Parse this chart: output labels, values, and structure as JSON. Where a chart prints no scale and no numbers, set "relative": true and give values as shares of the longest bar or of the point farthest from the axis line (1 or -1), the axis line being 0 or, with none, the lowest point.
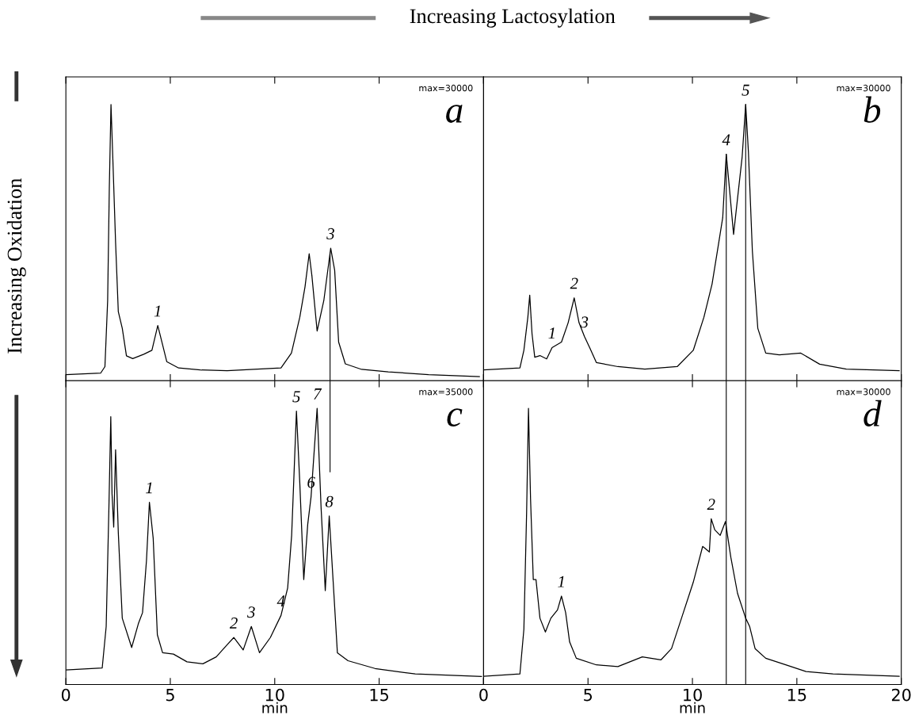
{
  "chart_data": [
    {
      "type": "line",
      "relative": true,
      "xlim": [
        0,
        20
      ],
      "xticks": [
        0,
        5,
        10,
        15,
        20
      ],
      "tick_labels": false,
      "grid": false,
      "legend": false,
      "marker": "none",
      "line_style": "solid",
      "annotations": [
        "a",
        "max=30000",
        "Increasing Lactosylation",
        "Increasing Oxidation",
        {
          "text": "1",
          "x": 4.4,
          "y": 0.2
        },
        {
          "text": "3",
          "x": 12.68,
          "y": 0.48
        }
      ],
      "ref_lines": [
        {
          "axis": "x",
          "value": 12.65,
          "color": "#000000"
        }
      ],
      "series": [
        {
          "color": "#000000",
          "x": [
            0,
            1.67,
            1.87,
            2.0,
            2.08,
            2.16,
            2.25,
            2.38,
            2.51,
            2.7,
            2.9,
            3.2,
            3.73,
            4.12,
            4.4,
            4.63,
            4.83,
            5.4,
            6.43,
            7.72,
            9.0,
            10.3,
            10.8,
            11.2,
            11.45,
            11.65,
            11.78,
            12.03,
            12.35,
            12.68,
            12.87,
            13.06,
            13.38,
            14.16,
            15.44,
            17.37,
            19.8
          ],
          "values": [
            0.022,
            0.028,
            0.051,
            0.29,
            0.7,
            1.0,
            0.8,
            0.5,
            0.25,
            0.19,
            0.09,
            0.08,
            0.096,
            0.11,
            0.2,
            0.13,
            0.069,
            0.046,
            0.039,
            0.036,
            0.041,
            0.046,
            0.1,
            0.23,
            0.34,
            0.46,
            0.38,
            0.18,
            0.29,
            0.48,
            0.4,
            0.14,
            0.061,
            0.041,
            0.032,
            0.022,
            0.015
          ]
        }
      ]
    },
    {
      "type": "line",
      "relative": true,
      "xlim": [
        0,
        20
      ],
      "xticks": [
        0,
        5,
        10,
        15,
        20
      ],
      "tick_labels": false,
      "grid": false,
      "legend": false,
      "marker": "none",
      "line_style": "solid",
      "annotations": [
        "b",
        "max=30000",
        {
          "text": "1",
          "x": 3.28,
          "y": 0.12
        },
        {
          "text": "2",
          "x": 4.34,
          "y": 0.3
        },
        {
          "text": "3",
          "x": 4.83,
          "y": 0.16
        },
        {
          "text": "4",
          "x": 11.62,
          "y": 0.82
        },
        {
          "text": "5",
          "x": 12.55,
          "y": 1.0
        }
      ],
      "ref_lines": [
        {
          "axis": "x",
          "value": 11.62,
          "color": "#000000"
        },
        {
          "axis": "x",
          "value": 12.55,
          "color": "#000000"
        }
      ],
      "series": [
        {
          "color": "#000000",
          "x": [
            0,
            1.74,
            1.93,
            2.12,
            2.21,
            2.32,
            2.45,
            2.7,
            3.02,
            3.28,
            3.73,
            4.05,
            4.34,
            4.57,
            4.83,
            5.08,
            5.4,
            6.43,
            7.72,
            9.27,
            10.04,
            10.55,
            10.94,
            11.26,
            11.45,
            11.62,
            11.78,
            11.97,
            12.16,
            12.38,
            12.55,
            12.68,
            12.87,
            13.13,
            13.51,
            14.16,
            15.19,
            16.09,
            17.37,
            19.9
          ],
          "values": [
            0.039,
            0.046,
            0.11,
            0.23,
            0.31,
            0.17,
            0.085,
            0.091,
            0.079,
            0.12,
            0.14,
            0.21,
            0.3,
            0.21,
            0.16,
            0.12,
            0.066,
            0.051,
            0.042,
            0.051,
            0.11,
            0.23,
            0.35,
            0.5,
            0.59,
            0.82,
            0.69,
            0.53,
            0.66,
            0.81,
            1.0,
            0.83,
            0.47,
            0.19,
            0.1,
            0.094,
            0.1,
            0.06,
            0.042,
            0.036
          ]
        }
      ]
    },
    {
      "type": "line",
      "relative": true,
      "xlim": [
        0,
        20
      ],
      "xticks": [
        0,
        5,
        10,
        15,
        {
          "value": 20,
          "label": null
        }
      ],
      "xlabel": "min",
      "tick_labels": "x",
      "grid": false,
      "legend": false,
      "marker": "none",
      "line_style": "solid",
      "annotations": [
        "c",
        "max=35000",
        {
          "text": "1",
          "x": 4.0,
          "y": 0.66
        },
        {
          "text": "2",
          "x": 8.04,
          "y": 0.17
        },
        {
          "text": "3",
          "x": 8.88,
          "y": 0.21
        },
        {
          "text": "4",
          "x": 10.3,
          "y": 0.25
        },
        {
          "text": "5",
          "x": 11.04,
          "y": 0.99
        },
        {
          "text": "6",
          "x": 11.74,
          "y": 0.68
        },
        {
          "text": "7",
          "x": 12.03,
          "y": 1.0
        },
        {
          "text": "8",
          "x": 12.61,
          "y": 0.61
        }
      ],
      "ref_lines": [
        {
          "axis": "x",
          "value": 12.65,
          "color": "#000000"
        }
      ],
      "series": [
        {
          "color": "#000000",
          "x": [
            0,
            1.74,
            1.93,
            2.06,
            2.15,
            2.21,
            2.29,
            2.38,
            2.51,
            2.7,
            3.15,
            3.47,
            3.67,
            3.86,
            4.0,
            4.18,
            4.38,
            4.63,
            5.15,
            5.8,
            6.56,
            7.2,
            7.72,
            8.04,
            8.49,
            8.88,
            9.27,
            9.79,
            10.3,
            10.62,
            10.81,
            11.04,
            11.2,
            11.39,
            11.58,
            11.74,
            12.03,
            12.22,
            12.42,
            12.61,
            12.8,
            13.0,
            13.51,
            14.8,
            16.73,
            19.9
          ],
          "values": [
            0.053,
            0.06,
            0.21,
            0.64,
            0.97,
            0.69,
            0.57,
            0.85,
            0.55,
            0.24,
            0.134,
            0.22,
            0.26,
            0.45,
            0.66,
            0.53,
            0.18,
            0.115,
            0.11,
            0.082,
            0.075,
            0.1,
            0.144,
            0.17,
            0.125,
            0.21,
            0.115,
            0.17,
            0.25,
            0.35,
            0.54,
            0.99,
            0.73,
            0.38,
            0.58,
            0.68,
            1.0,
            0.64,
            0.34,
            0.61,
            0.37,
            0.115,
            0.086,
            0.058,
            0.038,
            0.029
          ]
        }
      ]
    },
    {
      "type": "line",
      "relative": true,
      "xlim": [
        0,
        20
      ],
      "xticks": [
        0,
        5,
        10,
        15,
        20
      ],
      "xlabel": "min",
      "tick_labels": "x",
      "grid": false,
      "legend": false,
      "marker": "none",
      "line_style": "solid",
      "annotations": [
        "d",
        "max=30000",
        {
          "text": "1",
          "x": 3.73,
          "y": 0.32
        },
        {
          "text": "2",
          "x": 10.9,
          "y": 0.6
        }
      ],
      "ref_lines": [
        {
          "axis": "x",
          "value": 11.62,
          "color": "#000000"
        },
        {
          "axis": "x",
          "value": 12.55,
          "color": "#000000"
        }
      ],
      "series": [
        {
          "color": "#000000",
          "x": [
            0,
            1.74,
            1.93,
            2.06,
            2.15,
            2.25,
            2.38,
            2.51,
            2.7,
            2.96,
            3.22,
            3.54,
            3.73,
            3.93,
            4.12,
            4.44,
            5.4,
            6.43,
            7.6,
            8.49,
            9.0,
            9.52,
            10.04,
            10.49,
            10.81,
            10.9,
            11.07,
            11.33,
            11.58,
            11.84,
            12.16,
            12.55,
            12.74,
            13.0,
            13.51,
            14.41,
            15.44,
            16.73,
            19.9
          ],
          "values": [
            0.03,
            0.038,
            0.2,
            0.62,
            1.0,
            0.67,
            0.38,
            0.38,
            0.24,
            0.19,
            0.24,
            0.27,
            0.32,
            0.26,
            0.154,
            0.095,
            0.071,
            0.065,
            0.1,
            0.089,
            0.13,
            0.25,
            0.37,
            0.5,
            0.48,
            0.6,
            0.56,
            0.54,
            0.59,
            0.46,
            0.33,
            0.24,
            0.21,
            0.13,
            0.095,
            0.073,
            0.047,
            0.038,
            0.03
          ]
        }
      ]
    }
  ]
}
